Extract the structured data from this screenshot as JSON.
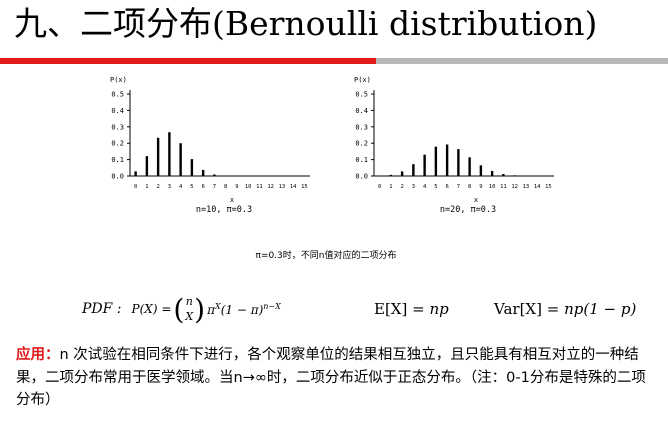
{
  "header": {
    "title": "九、二项分布(Bernoulli distribution)"
  },
  "figure": {
    "caption": "π=0.3时，不同n值对应的二项分布"
  },
  "chart_data": [
    {
      "type": "bar",
      "ylabel": "P(x)",
      "xlabel": "x",
      "annotation": "n=10, π=0.3",
      "ylim": [
        0,
        0.5
      ],
      "yticks": [
        0,
        0.1,
        0.2,
        0.3,
        0.4,
        0.5
      ],
      "categories": [
        0,
        1,
        2,
        3,
        4,
        5,
        6,
        7,
        8,
        9,
        10,
        11,
        12,
        13,
        14,
        15
      ],
      "values": [
        0.028,
        0.121,
        0.233,
        0.267,
        0.2,
        0.103,
        0.037,
        0.009,
        0.001,
        0,
        0,
        0,
        0,
        0,
        0,
        0
      ]
    },
    {
      "type": "bar",
      "ylabel": "P(x)",
      "xlabel": "x",
      "annotation": "n=20, π=0.3",
      "ylim": [
        0,
        0.5
      ],
      "yticks": [
        0,
        0.1,
        0.2,
        0.3,
        0.4,
        0.5
      ],
      "categories": [
        0,
        1,
        2,
        3,
        4,
        5,
        6,
        7,
        8,
        9,
        10,
        11,
        12,
        13,
        14,
        15
      ],
      "values": [
        0.001,
        0.007,
        0.028,
        0.072,
        0.13,
        0.179,
        0.192,
        0.164,
        0.114,
        0.065,
        0.031,
        0.012,
        0.004,
        0.001,
        0,
        0
      ]
    }
  ],
  "formulas": {
    "pdf_label": "PDF :",
    "pdf_lhs": "P(X) =",
    "binom_top": "n",
    "binom_bottom": "X",
    "pdf_pi": "π",
    "pdf_exp1": "X",
    "pdf_mid": "(1 − π)",
    "pdf_exp2": "n−X",
    "expectation_lhs": "E[X] = ",
    "expectation_rhs": "np",
    "variance_lhs": "Var[X] = ",
    "variance_rhs": "np(1 − p)"
  },
  "body": {
    "lead": "应用：",
    "text": "n 次试验在相同条件下进行，各个观察单位的结果相互独立，且只能具有相互对立的一种结果，二项分布常用于医学领域。当n→∞时，二项分布近似于正态分布。（注：0-1分布是特殊的二项分布）"
  },
  "colors": {
    "accent_red": "#e31a1a",
    "rule_grey": "#b7b7b7"
  }
}
